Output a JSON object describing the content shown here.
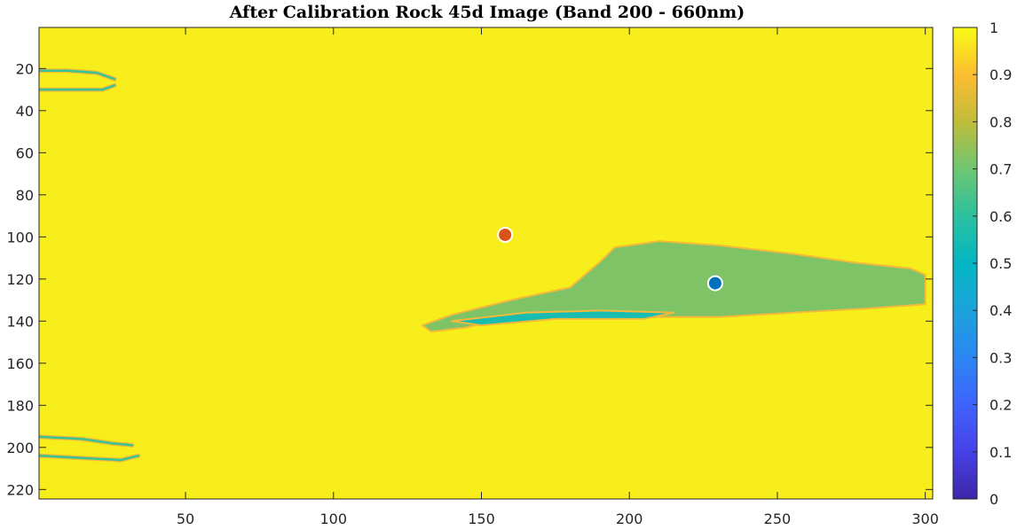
{
  "chart_data": {
    "type": "heatmap",
    "title": "After Calibration Rock 45d Image (Band 200 - 660nm)",
    "xlabel": "",
    "ylabel": "",
    "xlim": [
      0.5,
      302.5
    ],
    "ylim": [
      0.5,
      224.5
    ],
    "y_direction": "reversed",
    "x_ticks": [
      50,
      100,
      150,
      200,
      250,
      300
    ],
    "y_ticks": [
      20,
      40,
      60,
      80,
      100,
      120,
      140,
      160,
      180,
      200,
      220
    ],
    "colormap": "parula",
    "clim": [
      0,
      1
    ],
    "colorbar": {
      "location": "right",
      "ticks": [
        0,
        0.1,
        0.2,
        0.3,
        0.4,
        0.5,
        0.6,
        0.7,
        0.8,
        0.9,
        1
      ],
      "tick_labels": [
        "0",
        "0.1",
        "0.2",
        "0.3",
        "0.4",
        "0.5",
        "0.6",
        "0.7",
        "0.8",
        "0.9",
        "1"
      ]
    },
    "background_value": 0.98,
    "features": [
      {
        "kind": "rock-region",
        "value": 0.72,
        "outline": [
          [
            130,
            142
          ],
          [
            140,
            137
          ],
          [
            160,
            130
          ],
          [
            180,
            124
          ],
          [
            190,
            112
          ],
          [
            195,
            105
          ],
          [
            210,
            102
          ],
          [
            230,
            104
          ],
          [
            255,
            108
          ],
          [
            275,
            112
          ],
          [
            295,
            115
          ],
          [
            300,
            118
          ],
          [
            300,
            132
          ],
          [
            280,
            134
          ],
          [
            255,
            136
          ],
          [
            230,
            138
          ],
          [
            200,
            138
          ],
          [
            175,
            138
          ],
          [
            160,
            138
          ],
          [
            145,
            143
          ],
          [
            133,
            145
          ]
        ]
      },
      {
        "kind": "low-band",
        "value": 0.55,
        "outline": [
          [
            140,
            140
          ],
          [
            165,
            136
          ],
          [
            190,
            135
          ],
          [
            215,
            136
          ],
          [
            205,
            139
          ],
          [
            175,
            139
          ],
          [
            150,
            142
          ]
        ]
      },
      {
        "kind": "edge-streak",
        "value": 0.62,
        "points": [
          [
            1,
            21
          ],
          [
            10,
            21
          ],
          [
            20,
            22
          ],
          [
            26,
            25
          ]
        ]
      },
      {
        "kind": "edge-streak",
        "value": 0.62,
        "points": [
          [
            1,
            30
          ],
          [
            12,
            30
          ],
          [
            22,
            30
          ],
          [
            26,
            28
          ]
        ]
      },
      {
        "kind": "edge-streak",
        "value": 0.62,
        "points": [
          [
            1,
            195
          ],
          [
            15,
            196
          ],
          [
            25,
            198
          ],
          [
            32,
            199
          ]
        ]
      },
      {
        "kind": "edge-streak",
        "value": 0.62,
        "points": [
          [
            1,
            204
          ],
          [
            15,
            205
          ],
          [
            28,
            206
          ],
          [
            34,
            204
          ]
        ]
      }
    ],
    "markers": [
      {
        "x": 158,
        "y": 99,
        "color": "#d95319"
      },
      {
        "x": 229,
        "y": 122,
        "color": "#0072bd"
      }
    ]
  }
}
